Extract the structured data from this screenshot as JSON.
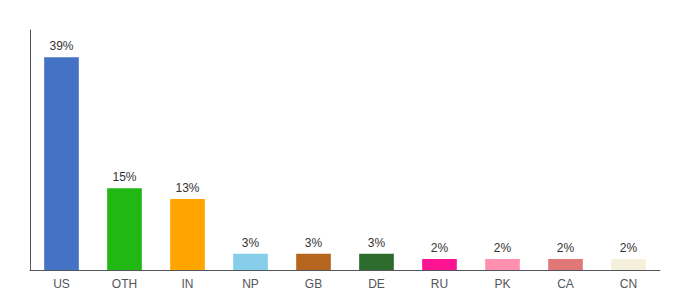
{
  "chart_data": {
    "type": "bar",
    "categories": [
      "US",
      "OTH",
      "IN",
      "NP",
      "GB",
      "DE",
      "RU",
      "PK",
      "CA",
      "CN"
    ],
    "values": [
      39,
      15,
      13,
      3,
      3,
      3,
      2,
      2,
      2,
      2
    ],
    "value_labels": [
      "39%",
      "15%",
      "13%",
      "3%",
      "3%",
      "3%",
      "2%",
      "2%",
      "2%",
      "2%"
    ],
    "colors": [
      "#4472c4",
      "#22b814",
      "#ffa500",
      "#87ceeb",
      "#b5651d",
      "#2d6b2d",
      "#ff1493",
      "#ff90b0",
      "#e07878",
      "#f5f0dc"
    ],
    "ylim": [
      0,
      44
    ],
    "data_labels": true,
    "tick_labels": "x",
    "grid": false
  }
}
